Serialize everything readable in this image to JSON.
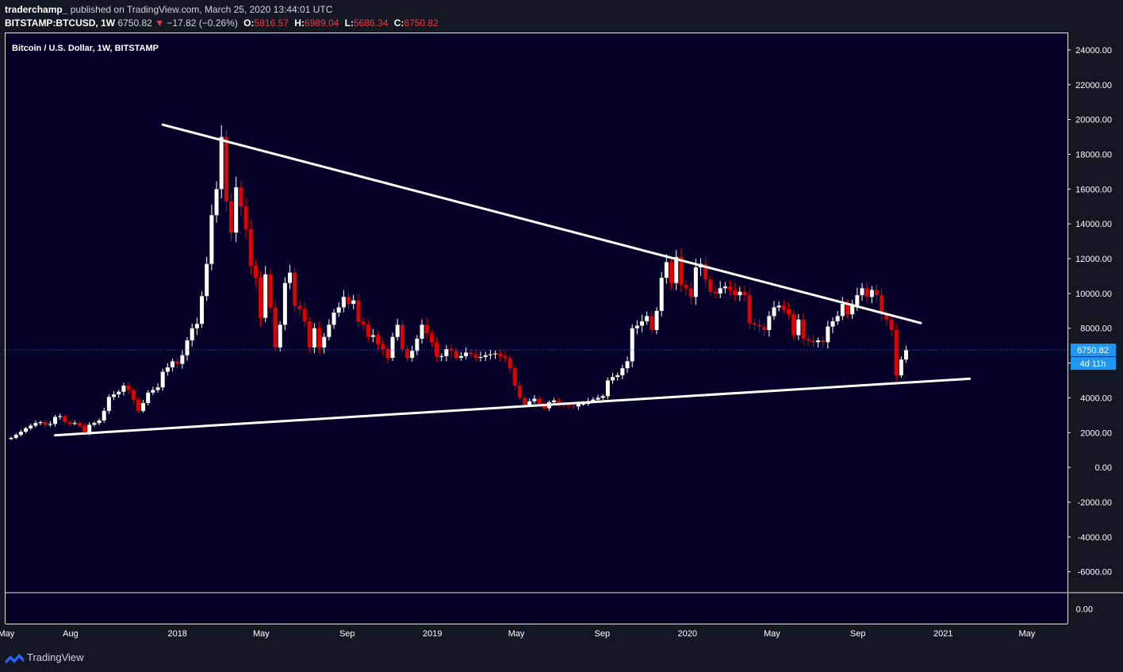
{
  "header": {
    "publisher_user": "traderchamp_",
    "publisher_text": "published on TradingView.com, March 25, 2020 13:44:01 UTC",
    "symbol": "BITSTAMP:BTCUSD, 1W",
    "last_price": "6750.82",
    "change_text": "−17.82 (−0.26%)",
    "open_label": "O:",
    "open_value": "5816.57",
    "high_label": "H:",
    "high_value": "6989.04",
    "low_label": "L:",
    "low_value": "5686.34",
    "close_label": "C:",
    "close_value": "6750.82"
  },
  "footer": {
    "brand": "TradingView"
  },
  "colors": {
    "background": "#050028",
    "up": "#ffffff",
    "down": "#e00000",
    "price_line": "#2962ff",
    "badge": "#2196f3"
  },
  "chart_data": {
    "type": "candlestick",
    "title": "Bitcoin / U.S. Dollar, 1W, BITSTAMP",
    "ylim": [
      -7200,
      25000
    ],
    "y_ticks": [
      "24000.00",
      "22000.00",
      "20000.00",
      "18000.00",
      "16000.00",
      "14000.00",
      "12000.00",
      "10000.00",
      "8000.00",
      "6000.00",
      "4000.00",
      "2000.00",
      "0.00",
      "-2000.00",
      "-4000.00",
      "-6000.00"
    ],
    "y_tick_values": [
      24000,
      22000,
      20000,
      18000,
      16000,
      14000,
      12000,
      10000,
      8000,
      6000,
      4000,
      2000,
      0,
      -2000,
      -4000,
      -6000
    ],
    "sub_pane_tick": "0.00",
    "x_ticks": [
      {
        "label": "May",
        "date": "2017-05-01"
      },
      {
        "label": "Aug",
        "date": "2017-08-01"
      },
      {
        "label": "2018",
        "date": "2018-01-01"
      },
      {
        "label": "May",
        "date": "2018-05-01"
      },
      {
        "label": "Sep",
        "date": "2018-09-01"
      },
      {
        "label": "2019",
        "date": "2019-01-01"
      },
      {
        "label": "May",
        "date": "2019-05-01"
      },
      {
        "label": "Sep",
        "date": "2019-09-01"
      },
      {
        "label": "2020",
        "date": "2020-01-01"
      },
      {
        "label": "May",
        "date": "2020-05-01"
      },
      {
        "label": "Sep",
        "date": "2020-09-01"
      },
      {
        "label": "2021",
        "date": "2021-01-01"
      },
      {
        "label": "May",
        "date": "2021-05-01"
      }
    ],
    "last_price": 6750.82,
    "last_price_label": "6750.82",
    "countdown_label": "4d 11h",
    "first_week": "2017-05-08",
    "week_closes": [
      1700,
      1870,
      2050,
      2250,
      2400,
      2550,
      2600,
      2450,
      2500,
      2900,
      2950,
      2600,
      2500,
      2550,
      2400,
      1950,
      2450,
      2550,
      2700,
      3250,
      4050,
      4200,
      4350,
      4700,
      4450,
      3900,
      3250,
      3700,
      4300,
      4450,
      4600,
      5500,
      5750,
      6100,
      5950,
      6450,
      7300,
      8000,
      8250,
      9850,
      11700,
      14500,
      16000,
      19000,
      15300,
      13500,
      16100,
      15000,
      13700,
      11600,
      10900,
      8600,
      11100,
      9200,
      6900,
      8200,
      10600,
      11200,
      9300,
      9100,
      8400,
      6900,
      8000,
      6900,
      7500,
      8200,
      8900,
      9200,
      9800,
      9400,
      9600,
      8400,
      8200,
      7500,
      7600,
      7100,
      6800,
      6300,
      7500,
      8200,
      6800,
      6300,
      6700,
      7400,
      8200,
      7700,
      7200,
      6400,
      6400,
      6800,
      6700,
      6300,
      6400,
      6600,
      6500,
      6300,
      6350,
      6450,
      6500,
      6550,
      6400,
      6300,
      5700,
      4700,
      4000,
      3600,
      3800,
      3950,
      3650,
      3400,
      3750,
      3850,
      3650,
      3600,
      3550,
      3500,
      3650,
      3650,
      3800,
      3900,
      4000,
      4100,
      5000,
      5200,
      5300,
      5700,
      6100,
      8000,
      8150,
      8400,
      8700,
      7900,
      9000,
      10900,
      11800,
      10600,
      12100,
      10500,
      10300,
      9800,
      11500,
      11700,
      10800,
      10100,
      10000,
      10300,
      10400,
      10200,
      9900,
      10100,
      9900,
      8300,
      8200,
      8100,
      7900,
      8700,
      9200,
      9300,
      9100,
      8800,
      7600,
      8500,
      7400,
      7300,
      7200,
      7300,
      7200,
      8100,
      8400,
      8700,
      9400,
      8800,
      9300,
      9900,
      10300,
      9800,
      10200,
      9900,
      8800,
      8500,
      7900,
      5300,
      6200,
      6750.82
    ],
    "trendlines": [
      {
        "name": "upper",
        "from": {
          "date": "2017-12-11",
          "price": 19700
        },
        "to": {
          "date": "2020-11-30",
          "price": 8300
        }
      },
      {
        "name": "lower",
        "from": {
          "date": "2017-07-10",
          "price": 1850
        },
        "to": {
          "date": "2021-02-08",
          "price": 5100
        }
      }
    ]
  }
}
